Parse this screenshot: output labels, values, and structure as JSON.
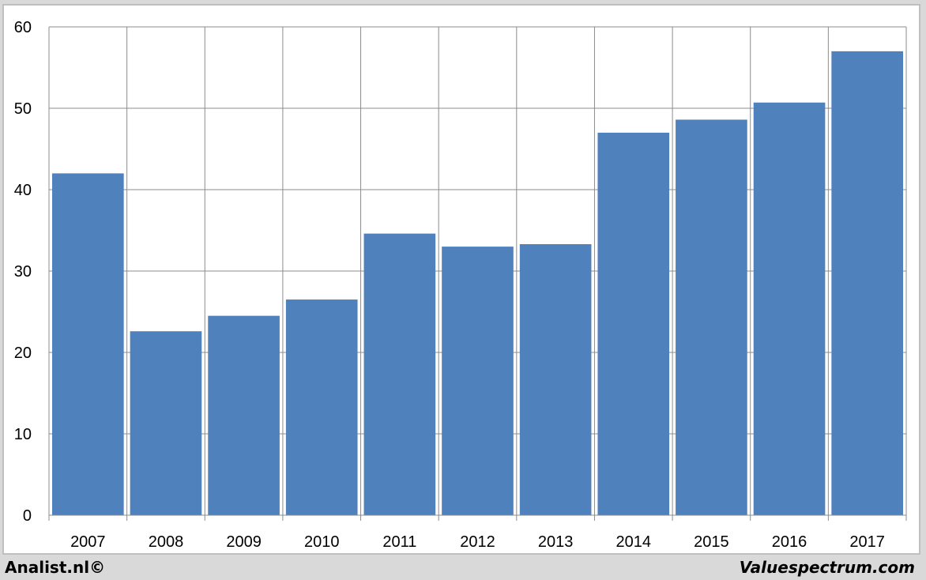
{
  "chart_data": {
    "type": "bar",
    "categories": [
      "2007",
      "2008",
      "2009",
      "2010",
      "2011",
      "2012",
      "2013",
      "2014",
      "2015",
      "2016",
      "2017"
    ],
    "values": [
      42.0,
      22.6,
      24.5,
      26.5,
      34.6,
      33.0,
      33.3,
      47.0,
      48.6,
      50.7,
      57.0
    ],
    "ylim": [
      0,
      60
    ],
    "yticks": [
      0,
      10,
      20,
      30,
      40,
      50,
      60
    ],
    "grid": true,
    "bar_color": "#4f81bd",
    "grid_color": "#8c8c8c"
  },
  "footer": {
    "left": "Analist.nl©",
    "right": "Valuespectrum.com"
  }
}
